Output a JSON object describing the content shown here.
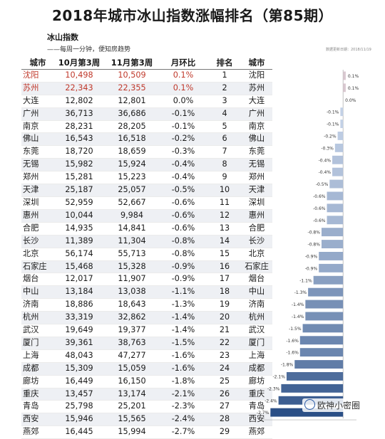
{
  "header": {
    "title": "2018年城市冰山指数涨幅排名（第85期）",
    "brand": "冰山指数",
    "slogan": "——每周一分钟，便知房趋势",
    "update_note": "数据更新日期：2018/11/19"
  },
  "table": {
    "columns": [
      "城市",
      "10月第3周",
      "11月第3周",
      "月环比",
      "排名",
      "城市"
    ]
  },
  "watermark": "欧神小密圈",
  "colors": {
    "positive_text": "#c0392b",
    "bar_light": "#c9d6ea",
    "bar_dark": "#2b4f86"
  },
  "chart_data": {
    "type": "bar",
    "orientation": "horizontal",
    "x_unit": "%",
    "xlim": [
      -3.0,
      0.5
    ],
    "x_ticks": [
      -3.0,
      -2.5,
      -2.0,
      -1.5,
      -1.0,
      -0.5,
      0.0,
      0.5
    ],
    "x_tick_labels": [
      "-3.0%",
      "-2.5%",
      "-2.0%",
      "-1.5%",
      "-1.0%",
      "-0.5%",
      "0.0%",
      "0.5%"
    ],
    "rows": [
      {
        "city": "沈阳",
        "oct": "10,498",
        "nov": "10,509",
        "mom_label": "0.1%",
        "mom": 0.1,
        "rank": 1
      },
      {
        "city": "苏州",
        "oct": "22,343",
        "nov": "22,355",
        "mom_label": "0.1%",
        "mom": 0.1,
        "rank": 2
      },
      {
        "city": "大连",
        "oct": "12,802",
        "nov": "12,801",
        "mom_label": "0.0%",
        "mom": 0.0,
        "rank": 3
      },
      {
        "city": "广州",
        "oct": "36,713",
        "nov": "36,686",
        "mom_label": "-0.1%",
        "mom": -0.1,
        "rank": 4
      },
      {
        "city": "南京",
        "oct": "28,231",
        "nov": "28,205",
        "mom_label": "-0.1%",
        "mom": -0.1,
        "rank": 5
      },
      {
        "city": "佛山",
        "oct": "16,543",
        "nov": "16,518",
        "mom_label": "-0.2%",
        "mom": -0.2,
        "rank": 6
      },
      {
        "city": "东莞",
        "oct": "18,720",
        "nov": "18,659",
        "mom_label": "-0.3%",
        "mom": -0.3,
        "rank": 7
      },
      {
        "city": "无锡",
        "oct": "15,982",
        "nov": "15,924",
        "mom_label": "-0.4%",
        "mom": -0.4,
        "rank": 8
      },
      {
        "city": "郑州",
        "oct": "15,281",
        "nov": "15,223",
        "mom_label": "-0.4%",
        "mom": -0.4,
        "rank": 9
      },
      {
        "city": "天津",
        "oct": "25,187",
        "nov": "25,057",
        "mom_label": "-0.5%",
        "mom": -0.5,
        "rank": 10
      },
      {
        "city": "深圳",
        "oct": "52,959",
        "nov": "52,667",
        "mom_label": "-0.6%",
        "mom": -0.6,
        "rank": 11
      },
      {
        "city": "惠州",
        "oct": "10,044",
        "nov": "9,984",
        "mom_label": "-0.6%",
        "mom": -0.6,
        "rank": 12
      },
      {
        "city": "合肥",
        "oct": "14,935",
        "nov": "14,841",
        "mom_label": "-0.6%",
        "mom": -0.6,
        "rank": 13
      },
      {
        "city": "长沙",
        "oct": "11,389",
        "nov": "11,304",
        "mom_label": "-0.8%",
        "mom": -0.8,
        "rank": 14
      },
      {
        "city": "北京",
        "oct": "56,174",
        "nov": "55,713",
        "mom_label": "-0.8%",
        "mom": -0.8,
        "rank": 15
      },
      {
        "city": "石家庄",
        "oct": "15,468",
        "nov": "15,328",
        "mom_label": "-0.9%",
        "mom": -0.9,
        "rank": 16
      },
      {
        "city": "烟台",
        "oct": "12,017",
        "nov": "11,907",
        "mom_label": "-0.9%",
        "mom": -0.9,
        "rank": 17
      },
      {
        "city": "中山",
        "oct": "13,184",
        "nov": "13,038",
        "mom_label": "-1.1%",
        "mom": -1.1,
        "rank": 18
      },
      {
        "city": "济南",
        "oct": "18,886",
        "nov": "18,643",
        "mom_label": "-1.3%",
        "mom": -1.3,
        "rank": 19
      },
      {
        "city": "杭州",
        "oct": "33,319",
        "nov": "32,862",
        "mom_label": "-1.4%",
        "mom": -1.4,
        "rank": 20
      },
      {
        "city": "武汉",
        "oct": "19,649",
        "nov": "19,377",
        "mom_label": "-1.4%",
        "mom": -1.4,
        "rank": 21
      },
      {
        "city": "厦门",
        "oct": "39,361",
        "nov": "38,763",
        "mom_label": "-1.5%",
        "mom": -1.5,
        "rank": 22
      },
      {
        "city": "上海",
        "oct": "48,043",
        "nov": "47,277",
        "mom_label": "-1.6%",
        "mom": -1.6,
        "rank": 23
      },
      {
        "city": "成都",
        "oct": "15,309",
        "nov": "15,059",
        "mom_label": "-1.6%",
        "mom": -1.6,
        "rank": 24
      },
      {
        "city": "廊坊",
        "oct": "16,449",
        "nov": "16,150",
        "mom_label": "-1.8%",
        "mom": -1.8,
        "rank": 25
      },
      {
        "city": "重庆",
        "oct": "13,457",
        "nov": "13,174",
        "mom_label": "-2.1%",
        "mom": -2.1,
        "rank": 26
      },
      {
        "city": "青岛",
        "oct": "25,798",
        "nov": "25,201",
        "mom_label": "-2.3%",
        "mom": -2.3,
        "rank": 27
      },
      {
        "city": "西安",
        "oct": "15,946",
        "nov": "15,565",
        "mom_label": "-2.4%",
        "mom": -2.4,
        "rank": 28
      },
      {
        "city": "燕郊",
        "oct": "16,445",
        "nov": "15,994",
        "mom_label": "-2.7%",
        "mom": -2.7,
        "rank": 29
      }
    ]
  }
}
